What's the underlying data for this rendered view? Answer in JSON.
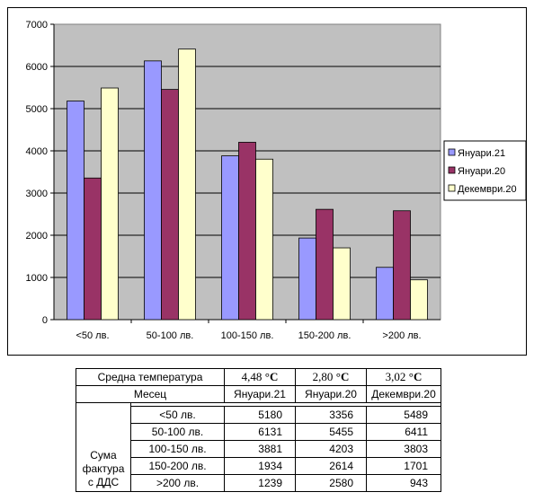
{
  "chart_data": {
    "type": "bar",
    "categories": [
      "<50 лв.",
      "50-100 лв.",
      "100-150 лв.",
      "150-200 лв.",
      ">200 лв."
    ],
    "series": [
      {
        "name": "Януари.21",
        "values": [
          5180,
          6131,
          3881,
          1934,
          1239
        ],
        "color": "#9999FF"
      },
      {
        "name": "Януари.20",
        "values": [
          3356,
          5455,
          4203,
          2614,
          2580
        ],
        "color": "#993366"
      },
      {
        "name": "Декември.20",
        "values": [
          5489,
          6411,
          3803,
          1701,
          943
        ],
        "color": "#FFFFCC"
      }
    ],
    "yticks": [
      "0",
      "1000",
      "2000",
      "3000",
      "4000",
      "5000",
      "6000",
      "7000"
    ],
    "ylim": [
      0,
      7000
    ],
    "grid": true,
    "legend": "right",
    "plot_background": "#C0C0C0"
  },
  "table": {
    "temp_label": "Средна температура",
    "temps": [
      {
        "value": "4,48",
        "unit": "°C"
      },
      {
        "value": "2,80",
        "unit": "°C"
      },
      {
        "value": "3,02",
        "unit": "°C"
      }
    ],
    "month_label": "Месец",
    "months": [
      "Януари.21",
      "Януари.20",
      "Декември.20"
    ],
    "row_group_label": "Сума фактура с ДДС",
    "rows": [
      {
        "category": "<50 лв.",
        "values": [
          "5180",
          "3356",
          "5489"
        ]
      },
      {
        "category": "50-100 лв.",
        "values": [
          "6131",
          "5455",
          "6411"
        ]
      },
      {
        "category": "100-150 лв.",
        "values": [
          "3881",
          "4203",
          "3803"
        ]
      },
      {
        "category": "150-200 лв.",
        "values": [
          "1934",
          "2614",
          "1701"
        ]
      },
      {
        "category": ">200 лв.",
        "values": [
          "1239",
          "2580",
          "943"
        ]
      }
    ]
  }
}
